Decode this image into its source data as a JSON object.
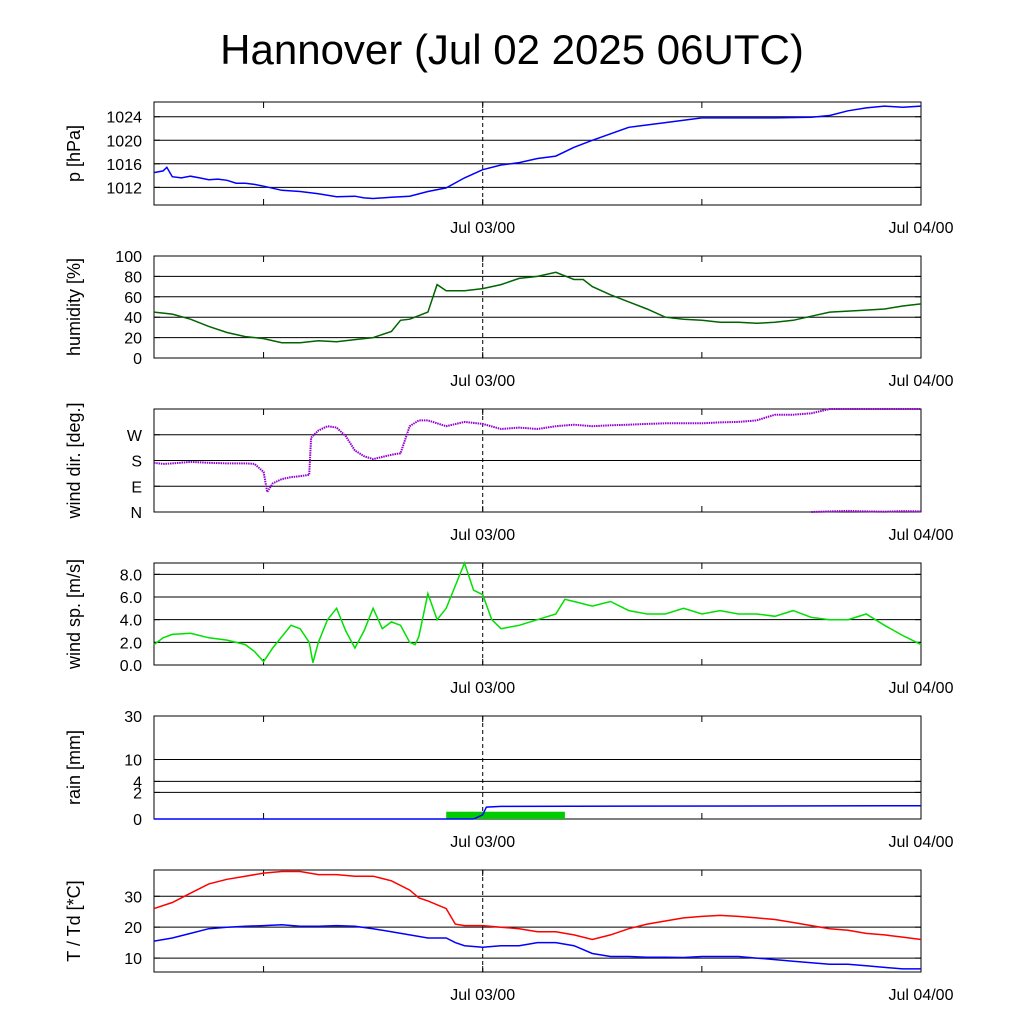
{
  "title": "Hannover (Jul 02 2025 06UTC)",
  "x_axis": {
    "start": "Jul 02 06UTC",
    "end": "Jul 04 00UTC",
    "tick_labels": [
      {
        "label": "Jul 03/00",
        "hours": 18
      },
      {
        "label": "Jul 04/00",
        "hours": 42
      }
    ],
    "minor_tick_hours": [
      6,
      30
    ],
    "dashed_marker_hours": 18
  },
  "colors": {
    "pressure": "#0000ff",
    "humidity": "#006400",
    "wind_dir": "#9400d3",
    "wind_speed": "#00e000",
    "rain_total": "#0000ff",
    "rain_bars": "#00cc00",
    "temperature": "#ff0000",
    "dewpoint": "#0000ff"
  },
  "chart_data": [
    {
      "type": "line",
      "id": "pressure",
      "ylabel": "p [hPa]",
      "ylim": [
        1009,
        1026.5
      ],
      "yticks": [
        {
          "v": 1012,
          "label": "1012"
        },
        {
          "v": 1016,
          "label": "1016"
        },
        {
          "v": 1020,
          "label": "1020"
        },
        {
          "v": 1024,
          "label": "1024"
        }
      ],
      "series": [
        {
          "color_key": "pressure",
          "x": [
            0,
            0.5,
            0.7,
            1,
            1.5,
            2,
            2.5,
            3,
            3.5,
            4,
            4.5,
            5,
            5.5,
            6,
            7,
            8,
            9,
            10,
            11,
            11.5,
            12,
            13,
            14,
            15,
            16,
            17,
            18,
            19,
            20,
            21,
            22,
            23,
            24,
            26,
            28,
            30,
            32,
            34,
            36,
            37,
            38,
            39,
            40,
            41,
            42
          ],
          "y": [
            1014.5,
            1014.8,
            1015.4,
            1013.8,
            1013.6,
            1013.9,
            1013.6,
            1013.3,
            1013.4,
            1013.2,
            1012.7,
            1012.7,
            1012.5,
            1012.2,
            1011.5,
            1011.3,
            1010.9,
            1010.4,
            1010.5,
            1010.2,
            1010.1,
            1010.3,
            1010.5,
            1011.3,
            1011.9,
            1013.6,
            1015.0,
            1015.8,
            1016.2,
            1016.9,
            1017.3,
            1018.8,
            1020.0,
            1022.2,
            1023.0,
            1023.8,
            1023.8,
            1023.8,
            1023.9,
            1024.2,
            1025.0,
            1025.5,
            1025.8,
            1025.6,
            1025.8
          ]
        }
      ]
    },
    {
      "type": "line",
      "id": "humidity",
      "ylabel": "humidity [%]",
      "ylim": [
        0,
        100
      ],
      "yticks": [
        {
          "v": 0,
          "label": "0"
        },
        {
          "v": 20,
          "label": "20"
        },
        {
          "v": 40,
          "label": "40"
        },
        {
          "v": 60,
          "label": "60"
        },
        {
          "v": 80,
          "label": "80"
        },
        {
          "v": 100,
          "label": "100"
        }
      ],
      "series": [
        {
          "color_key": "humidity",
          "x": [
            0,
            1,
            2,
            3,
            4,
            5,
            6,
            7,
            8,
            9,
            10,
            11,
            12,
            13,
            13.5,
            14,
            15,
            15.5,
            16,
            17,
            18,
            19,
            20,
            21,
            22,
            23,
            23.5,
            24,
            25,
            26,
            27,
            28,
            29,
            30,
            31,
            32,
            33,
            34,
            35,
            36,
            37,
            38,
            39,
            40,
            41,
            42
          ],
          "y": [
            45,
            43,
            38,
            31,
            25,
            21,
            19,
            15,
            15,
            17,
            16,
            18,
            20,
            26,
            37,
            38,
            45,
            72,
            66,
            66,
            68,
            72,
            78,
            80,
            84,
            77,
            77,
            70,
            62,
            55,
            48,
            40,
            38,
            37,
            35,
            35,
            34,
            35,
            37,
            41,
            45,
            46,
            47,
            48,
            51,
            53
          ]
        }
      ]
    },
    {
      "type": "scatter",
      "id": "wind_dir",
      "ylabel": "wind dir. [deg.]",
      "ylim": [
        0,
        360
      ],
      "yticks": [
        {
          "v": 0,
          "label": "N"
        },
        {
          "v": 90,
          "label": "E"
        },
        {
          "v": 180,
          "label": "S"
        },
        {
          "v": 270,
          "label": "W"
        }
      ],
      "series": [
        {
          "color_key": "wind_dir",
          "x": [
            0,
            0.5,
            1,
            2,
            3,
            4,
            5,
            5.5,
            6,
            6.2,
            6.5,
            7,
            7.5,
            8,
            8.5,
            8.6,
            9,
            9.5,
            10,
            10.5,
            11,
            11.5,
            12,
            13,
            13.5,
            14,
            14.5,
            15,
            16,
            17,
            18,
            19,
            20,
            21,
            22,
            23,
            24,
            25,
            26,
            27,
            28,
            29,
            30,
            31,
            32,
            33,
            34,
            35,
            36,
            37,
            38,
            39,
            40,
            41,
            42
          ],
          "y": [
            172,
            168,
            170,
            175,
            172,
            170,
            170,
            168,
            140,
            70,
            100,
            115,
            122,
            125,
            130,
            260,
            285,
            300,
            295,
            265,
            215,
            195,
            185,
            200,
            205,
            300,
            320,
            320,
            300,
            315,
            308,
            290,
            295,
            290,
            300,
            305,
            300,
            303,
            305,
            308,
            310,
            310,
            310,
            313,
            315,
            320,
            340,
            340,
            345,
            360,
            360,
            360,
            360,
            360,
            360
          ]
        },
        {
          "color_key": "wind_dir",
          "x": [
            36,
            37,
            38,
            39,
            40,
            41,
            42
          ],
          "y": [
            0,
            2,
            4,
            2,
            1,
            3,
            2
          ]
        }
      ]
    },
    {
      "type": "line",
      "id": "wind_speed",
      "ylabel": "wind sp. [m/s]",
      "ylim": [
        0,
        9
      ],
      "yticks": [
        {
          "v": 0,
          "label": "0.0"
        },
        {
          "v": 2,
          "label": "2.0"
        },
        {
          "v": 4,
          "label": "4.0"
        },
        {
          "v": 6,
          "label": "6.0"
        },
        {
          "v": 8,
          "label": "8.0"
        }
      ],
      "series": [
        {
          "color_key": "wind_speed",
          "x": [
            0,
            0.5,
            1,
            2,
            3,
            4,
            5,
            5.5,
            6,
            6.5,
            7,
            7.5,
            8,
            8.5,
            8.7,
            9,
            9.5,
            10,
            10.5,
            11,
            11.5,
            12,
            12.5,
            13,
            13.5,
            14,
            14.3,
            14.5,
            15,
            15.5,
            16,
            17,
            17.5,
            18,
            18.5,
            19,
            20,
            21,
            22,
            22.5,
            23,
            24,
            25,
            26,
            27,
            28,
            29,
            30,
            31,
            32,
            33,
            34,
            35,
            36,
            37,
            38,
            39,
            40,
            41,
            42
          ],
          "y": [
            1.8,
            2.4,
            2.7,
            2.8,
            2.4,
            2.2,
            1.8,
            1.2,
            0.3,
            1.5,
            2.5,
            3.5,
            3.2,
            2.0,
            0.2,
            2.0,
            4.0,
            5.0,
            3.0,
            1.5,
            3.0,
            5.0,
            3.2,
            3.8,
            3.5,
            2.0,
            1.8,
            2.5,
            6.3,
            4.0,
            5.0,
            9.0,
            6.6,
            6.2,
            4.0,
            3.2,
            3.5,
            4.0,
            4.5,
            5.8,
            5.6,
            5.2,
            5.6,
            4.8,
            4.5,
            4.5,
            5.0,
            4.5,
            4.8,
            4.5,
            4.5,
            4.3,
            4.8,
            4.2,
            4.0,
            4.0,
            4.5,
            3.5,
            2.6,
            1.8
          ]
        }
      ]
    },
    {
      "type": "line",
      "id": "rain",
      "ylabel": "rain [mm]",
      "scale": "sqrt",
      "ylim": [
        0,
        30
      ],
      "yticks": [
        {
          "v": 0,
          "label": "0"
        },
        {
          "v": 2,
          "label": "2"
        },
        {
          "v": 4,
          "label": "4"
        },
        {
          "v": 10,
          "label": "10"
        },
        {
          "v": 30,
          "label": "30"
        }
      ],
      "series": [
        {
          "color_key": "rain_total",
          "x": [
            0,
            17.5,
            18,
            18.2,
            19,
            42
          ],
          "y": [
            0,
            0,
            0.05,
            0.4,
            0.45,
            0.5
          ]
        }
      ],
      "bars": {
        "color_key": "rain_bars",
        "from": 16,
        "to": 22.5,
        "value": 0.15
      }
    },
    {
      "type": "line",
      "id": "temperature",
      "ylabel": "T / Td [*C]",
      "ylim": [
        5.5,
        38.5
      ],
      "yticks": [
        {
          "v": 10,
          "label": "10"
        },
        {
          "v": 20,
          "label": "20"
        },
        {
          "v": 30,
          "label": "30"
        }
      ],
      "series": [
        {
          "color_key": "temperature",
          "x": [
            0,
            1,
            2,
            3,
            4,
            5,
            6,
            7,
            8,
            9,
            10,
            11,
            12,
            13,
            14,
            14.5,
            15,
            16,
            16.5,
            17,
            18,
            19,
            20,
            21,
            22,
            23,
            24,
            25,
            26,
            27,
            28,
            29,
            30,
            31,
            32,
            33,
            34,
            35,
            36,
            37,
            38,
            39,
            40,
            41,
            42
          ],
          "y": [
            26,
            28,
            31,
            34,
            35.5,
            36.5,
            37.5,
            38,
            38,
            37,
            37,
            36.5,
            36.5,
            35,
            32,
            29.5,
            28.5,
            26,
            21,
            20.5,
            20.5,
            20,
            19.5,
            18.5,
            18.5,
            17.5,
            16,
            17.5,
            19.5,
            21,
            22,
            23,
            23.5,
            23.8,
            23.5,
            23,
            22.5,
            21.5,
            20.5,
            19.5,
            19,
            18,
            17.5,
            16.8,
            16
          ]
        },
        {
          "color_key": "dewpoint",
          "x": [
            0,
            1,
            2,
            3,
            4,
            5,
            6,
            7,
            8,
            9,
            10,
            11,
            12,
            13,
            14,
            15,
            16,
            16.5,
            17,
            18,
            19,
            20,
            21,
            22,
            23,
            24,
            25,
            26,
            27,
            28,
            29,
            30,
            31,
            32,
            33,
            34,
            35,
            36,
            37,
            38,
            39,
            40,
            41,
            42
          ],
          "y": [
            15.5,
            16.5,
            18,
            19.5,
            20,
            20.3,
            20.5,
            20.8,
            20.3,
            20.3,
            20.5,
            20.3,
            19.5,
            18.5,
            17.5,
            16.5,
            16.5,
            15,
            14,
            13.5,
            14,
            14,
            15,
            15,
            14,
            11.5,
            10.5,
            10.5,
            10.3,
            10.3,
            10.2,
            10.5,
            10.5,
            10.5,
            10,
            9.5,
            9,
            8.5,
            8,
            8,
            7.5,
            7,
            6.5,
            6.5
          ]
        }
      ]
    }
  ]
}
